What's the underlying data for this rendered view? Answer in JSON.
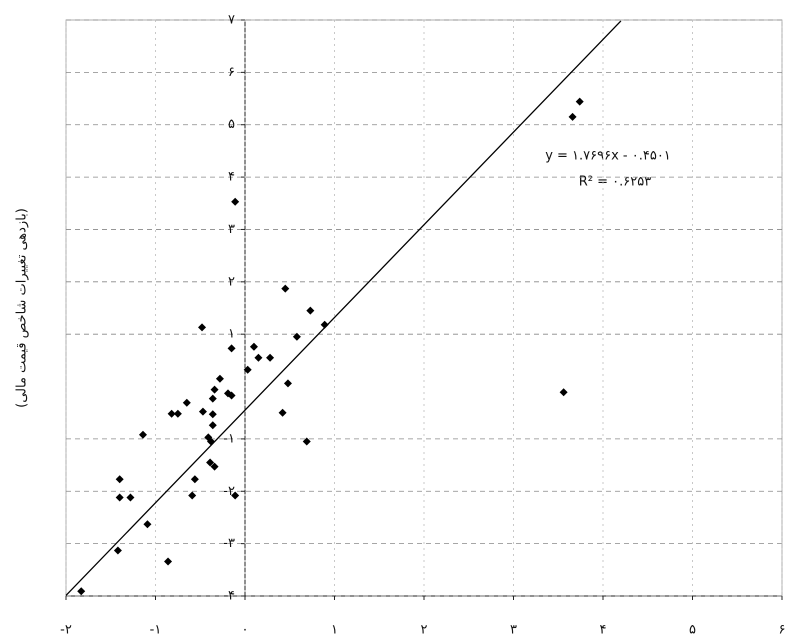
{
  "chart_data": {
    "type": "scatter",
    "y_label": "(بازدهی تغییرات شاخص قیمت مالی)",
    "equation": "y = ۱.۷۶۹۶x - ۰.۴۵۰۱",
    "r_squared": "R² = ۰.۶۲۵۳",
    "trendline": {
      "slope": 1.7696,
      "intercept": -0.4501,
      "xrange": [
        -2,
        4.2
      ]
    },
    "color": "#000000",
    "grid": true,
    "xlim": [
      -2,
      6
    ],
    "xticks": [
      {
        "value": -2,
        "label": "-۲"
      },
      {
        "value": -1,
        "label": "-۱"
      },
      {
        "value": 0,
        "label": "۰"
      },
      {
        "value": 1,
        "label": "۱"
      },
      {
        "value": 2,
        "label": "۲"
      },
      {
        "value": 3,
        "label": "۳"
      },
      {
        "value": 4,
        "label": "۴"
      },
      {
        "value": 5,
        "label": "۵"
      },
      {
        "value": 6,
        "label": "۶"
      }
    ],
    "ylim": [
      -4,
      7
    ],
    "yticks": [
      {
        "value": -4,
        "label": "-۴"
      },
      {
        "value": -3,
        "label": "-۳"
      },
      {
        "value": -2,
        "label": "-۲"
      },
      {
        "value": -1,
        "label": "-۱"
      },
      {
        "value": 1,
        "label": "۱"
      },
      {
        "value": 2,
        "label": "۲"
      },
      {
        "value": 3,
        "label": "۳"
      },
      {
        "value": 4,
        "label": "۴"
      },
      {
        "value": 5,
        "label": "۵"
      },
      {
        "value": 6,
        "label": "۶"
      },
      {
        "value": 7,
        "label": "۷"
      }
    ],
    "x": [
      3.66,
      3.74,
      -0.11,
      0.45,
      0.73,
      0.89,
      0.58,
      -0.48,
      0.1,
      0.15,
      0.28,
      0.03,
      -0.15,
      -0.28,
      -0.34,
      -0.19,
      -0.15,
      0.48,
      0.42,
      0.69,
      3.56,
      -0.65,
      -0.36,
      -0.82,
      -0.75,
      -0.47,
      -0.36,
      -0.36,
      -0.41,
      -0.38,
      -1.14,
      -0.39,
      -0.34,
      -0.56,
      -0.59,
      -0.11,
      -1.4,
      -1.4,
      -1.28,
      -1.09,
      -1.42,
      -0.86,
      -1.83
    ],
    "values": [
      5.15,
      5.44,
      3.53,
      1.87,
      1.45,
      1.18,
      0.95,
      1.13,
      0.76,
      0.55,
      0.55,
      0.32,
      0.73,
      0.15,
      -0.06,
      -0.13,
      -0.17,
      0.06,
      -0.5,
      -1.05,
      -0.11,
      -0.31,
      -0.23,
      -0.52,
      -0.52,
      -0.48,
      -0.53,
      -0.74,
      -0.97,
      -1.05,
      -0.92,
      -1.45,
      -1.53,
      -1.77,
      -2.08,
      -2.08,
      -1.77,
      -2.12,
      -2.12,
      -2.63,
      -3.13,
      -3.34,
      -3.91
    ]
  }
}
